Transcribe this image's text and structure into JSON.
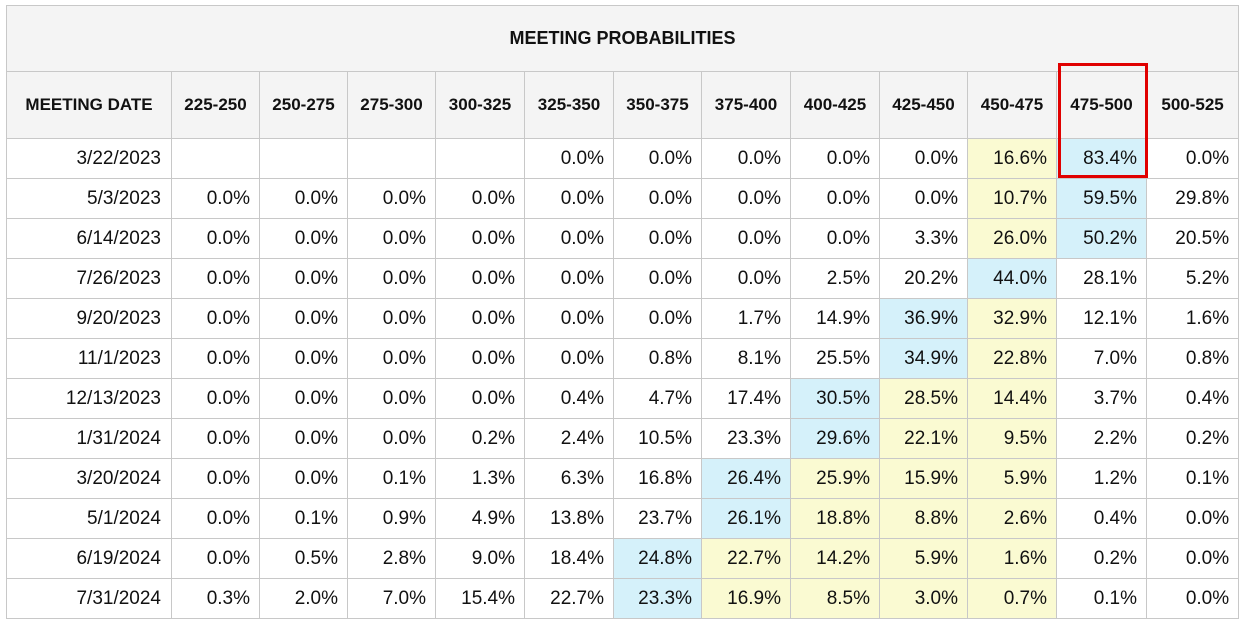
{
  "title": "MEETING PROBABILITIES",
  "columns": [
    "MEETING DATE",
    "225-250",
    "250-275",
    "275-300",
    "300-325",
    "325-350",
    "350-375",
    "375-400",
    "400-425",
    "425-450",
    "450-475",
    "475-500",
    "500-525"
  ],
  "rows": [
    {
      "date": "3/22/2023",
      "values": [
        "",
        "",
        "",
        "",
        "0.0%",
        "0.0%",
        "0.0%",
        "0.0%",
        "0.0%",
        "16.6%",
        "83.4%",
        "0.0%"
      ],
      "blue": 10,
      "yellow": [
        9
      ]
    },
    {
      "date": "5/3/2023",
      "values": [
        "0.0%",
        "0.0%",
        "0.0%",
        "0.0%",
        "0.0%",
        "0.0%",
        "0.0%",
        "0.0%",
        "0.0%",
        "10.7%",
        "59.5%",
        "29.8%"
      ],
      "blue": 10,
      "yellow": [
        9
      ]
    },
    {
      "date": "6/14/2023",
      "values": [
        "0.0%",
        "0.0%",
        "0.0%",
        "0.0%",
        "0.0%",
        "0.0%",
        "0.0%",
        "0.0%",
        "3.3%",
        "26.0%",
        "50.2%",
        "20.5%"
      ],
      "blue": 10,
      "yellow": [
        9
      ]
    },
    {
      "date": "7/26/2023",
      "values": [
        "0.0%",
        "0.0%",
        "0.0%",
        "0.0%",
        "0.0%",
        "0.0%",
        "0.0%",
        "2.5%",
        "20.2%",
        "44.0%",
        "28.1%",
        "5.2%"
      ],
      "blue": 9,
      "yellow": []
    },
    {
      "date": "9/20/2023",
      "values": [
        "0.0%",
        "0.0%",
        "0.0%",
        "0.0%",
        "0.0%",
        "0.0%",
        "1.7%",
        "14.9%",
        "36.9%",
        "32.9%",
        "12.1%",
        "1.6%"
      ],
      "blue": 8,
      "yellow": [
        9
      ]
    },
    {
      "date": "11/1/2023",
      "values": [
        "0.0%",
        "0.0%",
        "0.0%",
        "0.0%",
        "0.0%",
        "0.8%",
        "8.1%",
        "25.5%",
        "34.9%",
        "22.8%",
        "7.0%",
        "0.8%"
      ],
      "blue": 8,
      "yellow": [
        9
      ]
    },
    {
      "date": "12/13/2023",
      "values": [
        "0.0%",
        "0.0%",
        "0.0%",
        "0.0%",
        "0.4%",
        "4.7%",
        "17.4%",
        "30.5%",
        "28.5%",
        "14.4%",
        "3.7%",
        "0.4%"
      ],
      "blue": 7,
      "yellow": [
        8,
        9
      ]
    },
    {
      "date": "1/31/2024",
      "values": [
        "0.0%",
        "0.0%",
        "0.0%",
        "0.2%",
        "2.4%",
        "10.5%",
        "23.3%",
        "29.6%",
        "22.1%",
        "9.5%",
        "2.2%",
        "0.2%"
      ],
      "blue": 7,
      "yellow": [
        8,
        9
      ]
    },
    {
      "date": "3/20/2024",
      "values": [
        "0.0%",
        "0.0%",
        "0.1%",
        "1.3%",
        "6.3%",
        "16.8%",
        "26.4%",
        "25.9%",
        "15.9%",
        "5.9%",
        "1.2%",
        "0.1%"
      ],
      "blue": 6,
      "yellow": [
        7,
        8,
        9
      ]
    },
    {
      "date": "5/1/2024",
      "values": [
        "0.0%",
        "0.1%",
        "0.9%",
        "4.9%",
        "13.8%",
        "23.7%",
        "26.1%",
        "18.8%",
        "8.8%",
        "2.6%",
        "0.4%",
        "0.0%"
      ],
      "blue": 6,
      "yellow": [
        7,
        8,
        9
      ]
    },
    {
      "date": "6/19/2024",
      "values": [
        "0.0%",
        "0.5%",
        "2.8%",
        "9.0%",
        "18.4%",
        "24.8%",
        "22.7%",
        "14.2%",
        "5.9%",
        "1.6%",
        "0.2%",
        "0.0%"
      ],
      "blue": 5,
      "yellow": [
        6,
        7,
        8,
        9
      ]
    },
    {
      "date": "7/31/2024",
      "values": [
        "0.3%",
        "2.0%",
        "7.0%",
        "15.4%",
        "22.7%",
        "23.3%",
        "16.9%",
        "8.5%",
        "3.0%",
        "0.7%",
        "0.1%",
        "0.0%"
      ],
      "blue": 5,
      "yellow": [
        6,
        7,
        8,
        9
      ]
    }
  ],
  "colors": {
    "highlight_blue": "#d5f1fa",
    "highlight_yellow": "#fafad2",
    "annotation_box": "#e00000"
  }
}
